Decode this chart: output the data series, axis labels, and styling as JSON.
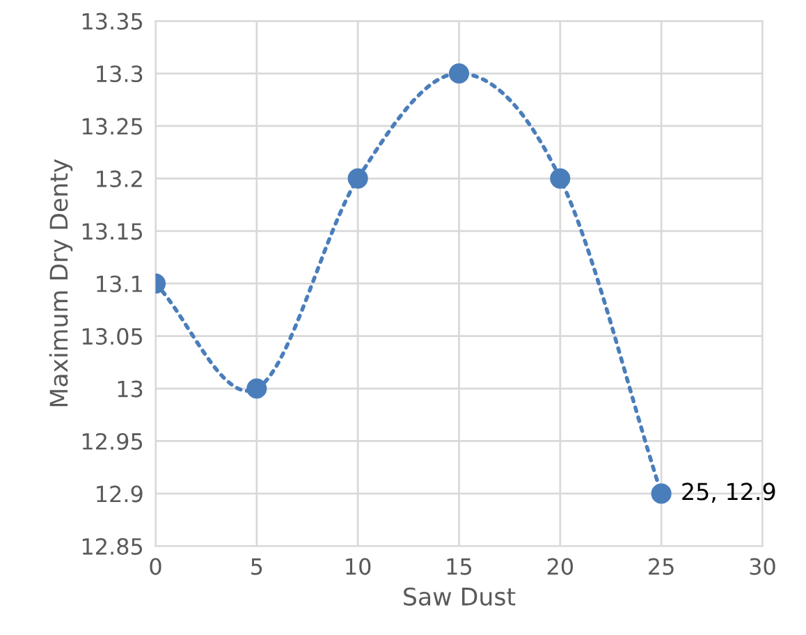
{
  "chart_data": {
    "type": "line",
    "xlabel": "Saw Dust",
    "ylabel": "Maximum Dry Denty",
    "x": [
      0,
      5,
      10,
      15,
      20,
      25
    ],
    "series": [
      {
        "color": "#4a7ebb",
        "values": [
          13.1,
          13.0,
          13.2,
          13.3,
          13.2,
          12.9
        ]
      }
    ],
    "marker": "circle",
    "line_style": "dotted",
    "grid": true,
    "xlim": [
      0,
      30
    ],
    "xticks": [
      0,
      5,
      10,
      15,
      20,
      25,
      30
    ],
    "ylim": [
      12.85,
      13.35
    ],
    "yticks": [
      12.85,
      12.9,
      12.95,
      13,
      13.05,
      13.1,
      13.15,
      13.2,
      13.25,
      13.3,
      13.35
    ],
    "annotations": [
      {
        "text": "25, 12.9",
        "x": 25,
        "y": 12.9
      }
    ]
  }
}
